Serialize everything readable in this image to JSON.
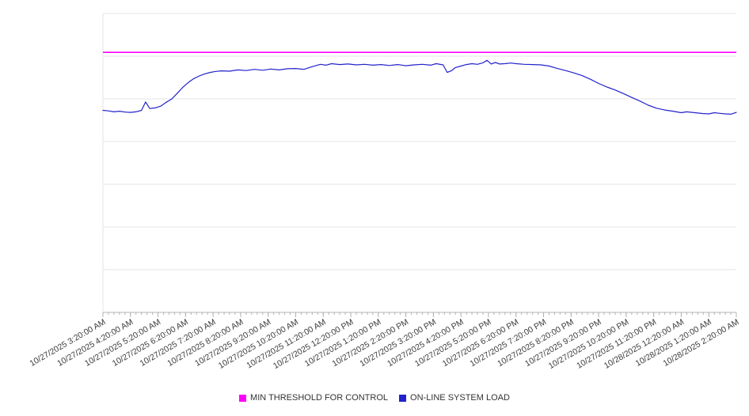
{
  "chart_data": {
    "type": "line",
    "title": "",
    "xlabel": "",
    "ylabel": "",
    "ylim": [
      0,
      100
    ],
    "grid": true,
    "legend_position": "bottom",
    "x_axis": {
      "labels": [
        "10/27/2025 3:20:00 AM",
        "10/27/2025 4:20:00 AM",
        "10/27/2025 5:20:00 AM",
        "10/27/2025 6:20:00 AM",
        "10/27/2025 7:20:00 AM",
        "10/27/2025 8:20:00 AM",
        "10/27/2025 9:20:00 AM",
        "10/27/2025 10:20:00 AM",
        "10/27/2025 11:20:00 AM",
        "10/27/2025 12:20:00 PM",
        "10/27/2025 1:20:00 PM",
        "10/27/2025 2:20:00 PM",
        "10/27/2025 3:20:00 PM",
        "10/27/2025 4:20:00 PM",
        "10/27/2025 5:20:00 PM",
        "10/27/2025 6:20:00 PM",
        "10/27/2025 7:20:00 PM",
        "10/27/2025 8:20:00 PM",
        "10/27/2025 9:20:00 PM",
        "10/27/2025 10:20:00 PM",
        "10/27/2025 11:20:00 PM",
        "10/28/2025 12:20:00 AM",
        "10/28/2025 1:20:00 AM",
        "10/28/2025 2:20:00 AM"
      ],
      "tick_interval_hours": 1,
      "minor_tick_interval_hours": 0.2
    },
    "series": [
      {
        "name": "MIN THRESHOLD FOR CONTROL",
        "color": "#ff00ff",
        "style": "constant",
        "value": 87.0
      },
      {
        "name": "ON-LINE SYSTEM LOAD",
        "color": "#2222cc",
        "style": "line",
        "points_hours_value": [
          [
            0,
            67.6
          ],
          [
            0.2,
            67.4
          ],
          [
            0.4,
            67.1
          ],
          [
            0.6,
            67.3
          ],
          [
            0.8,
            67.0
          ],
          [
            1.0,
            66.9
          ],
          [
            1.2,
            67.1
          ],
          [
            1.4,
            67.6
          ],
          [
            1.55,
            70.4
          ],
          [
            1.7,
            68.2
          ],
          [
            1.9,
            68.4
          ],
          [
            2.1,
            69.0
          ],
          [
            2.3,
            70.3
          ],
          [
            2.5,
            71.4
          ],
          [
            2.7,
            73.3
          ],
          [
            2.9,
            75.3
          ],
          [
            3.1,
            76.9
          ],
          [
            3.3,
            78.2
          ],
          [
            3.5,
            79.1
          ],
          [
            3.7,
            79.8
          ],
          [
            3.9,
            80.3
          ],
          [
            4.1,
            80.6
          ],
          [
            4.3,
            80.8
          ],
          [
            4.6,
            80.7
          ],
          [
            4.9,
            81.1
          ],
          [
            5.2,
            80.9
          ],
          [
            5.5,
            81.3
          ],
          [
            5.8,
            81.0
          ],
          [
            6.1,
            81.4
          ],
          [
            6.4,
            81.1
          ],
          [
            6.7,
            81.5
          ],
          [
            7.0,
            81.6
          ],
          [
            7.3,
            81.3
          ],
          [
            7.6,
            82.2
          ],
          [
            7.9,
            83.0
          ],
          [
            8.1,
            82.7
          ],
          [
            8.3,
            83.2
          ],
          [
            8.6,
            82.9
          ],
          [
            8.9,
            83.1
          ],
          [
            9.2,
            82.8
          ],
          [
            9.5,
            83.0
          ],
          [
            9.8,
            82.7
          ],
          [
            10.1,
            82.9
          ],
          [
            10.4,
            82.6
          ],
          [
            10.7,
            82.9
          ],
          [
            11.0,
            82.5
          ],
          [
            11.3,
            82.8
          ],
          [
            11.6,
            83.0
          ],
          [
            11.9,
            82.7
          ],
          [
            12.1,
            83.2
          ],
          [
            12.35,
            82.8
          ],
          [
            12.5,
            80.3
          ],
          [
            12.65,
            80.8
          ],
          [
            12.8,
            81.9
          ],
          [
            13.0,
            82.4
          ],
          [
            13.2,
            82.9
          ],
          [
            13.4,
            83.2
          ],
          [
            13.6,
            83.0
          ],
          [
            13.8,
            83.5
          ],
          [
            13.95,
            84.3
          ],
          [
            14.1,
            83.1
          ],
          [
            14.25,
            83.6
          ],
          [
            14.4,
            83.1
          ],
          [
            14.6,
            83.2
          ],
          [
            14.8,
            83.4
          ],
          [
            15.0,
            83.2
          ],
          [
            15.3,
            83.0
          ],
          [
            15.6,
            82.9
          ],
          [
            15.9,
            82.8
          ],
          [
            16.2,
            82.4
          ],
          [
            16.5,
            81.6
          ],
          [
            16.8,
            80.9
          ],
          [
            17.1,
            80.1
          ],
          [
            17.4,
            79.2
          ],
          [
            17.7,
            78.0
          ],
          [
            18.0,
            76.6
          ],
          [
            18.3,
            75.4
          ],
          [
            18.6,
            74.4
          ],
          [
            18.9,
            73.2
          ],
          [
            19.2,
            71.9
          ],
          [
            19.5,
            70.7
          ],
          [
            19.8,
            69.3
          ],
          [
            20.1,
            68.3
          ],
          [
            20.4,
            67.7
          ],
          [
            20.7,
            67.3
          ],
          [
            21.0,
            66.8
          ],
          [
            21.2,
            67.1
          ],
          [
            21.4,
            66.9
          ],
          [
            21.6,
            66.7
          ],
          [
            21.8,
            66.5
          ],
          [
            22.0,
            66.4
          ],
          [
            22.2,
            66.8
          ],
          [
            22.4,
            66.6
          ],
          [
            22.6,
            66.4
          ],
          [
            22.8,
            66.3
          ],
          [
            23.0,
            66.9
          ]
        ]
      }
    ]
  },
  "colors": {
    "grid": "#e6e6e6",
    "axis": "#b3b3b3",
    "label_text": "#3c3c3c"
  }
}
